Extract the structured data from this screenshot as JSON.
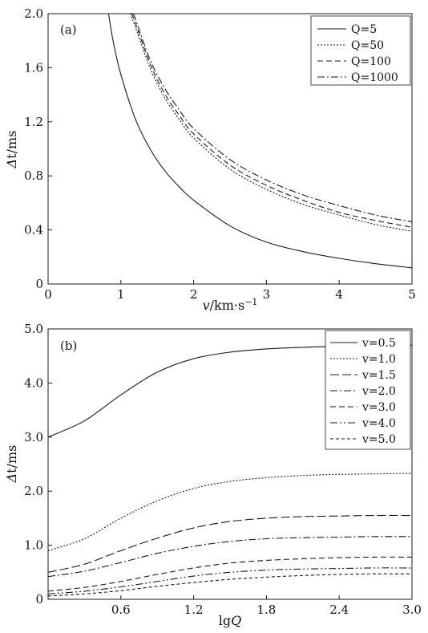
{
  "colors": {
    "ink": "#1a1a1a",
    "background": "#ffffff"
  },
  "chart_data": [
    {
      "panel": "(a)",
      "type": "line",
      "xlabel": "v/km·s⁻¹",
      "ylabel": "Δt/ms",
      "xlim": [
        0,
        5
      ],
      "ylim": [
        0,
        2.0
      ],
      "xticks": [
        "0",
        "1",
        "2",
        "3",
        "4",
        "5"
      ],
      "yticks": [
        "0",
        "0.4",
        "0.8",
        "1.2",
        "1.6",
        "2.0"
      ],
      "legend_position": "top-right",
      "series": [
        {
          "name": "Q=5",
          "dash": "solid",
          "x": [
            0.83,
            0.9,
            1.0,
            1.2,
            1.4,
            1.6,
            1.8,
            2.0,
            2.5,
            3.0,
            3.5,
            4.0,
            4.5,
            5.0
          ],
          "y": [
            2.0,
            1.78,
            1.55,
            1.22,
            1.0,
            0.84,
            0.72,
            0.62,
            0.43,
            0.31,
            0.24,
            0.19,
            0.15,
            0.12
          ]
        },
        {
          "name": "Q=50",
          "dash": "dot",
          "x": [
            1.13,
            1.2,
            1.4,
            1.6,
            1.8,
            2.0,
            2.5,
            3.0,
            3.5,
            4.0,
            4.5,
            5.0
          ],
          "y": [
            2.0,
            1.9,
            1.6,
            1.38,
            1.22,
            1.08,
            0.85,
            0.7,
            0.59,
            0.51,
            0.44,
            0.39
          ]
        },
        {
          "name": "Q=100",
          "dash": "dash",
          "x": [
            1.15,
            1.2,
            1.4,
            1.6,
            1.8,
            2.0,
            2.5,
            3.0,
            3.5,
            4.0,
            4.5,
            5.0
          ],
          "y": [
            2.0,
            1.93,
            1.63,
            1.41,
            1.25,
            1.11,
            0.88,
            0.73,
            0.62,
            0.53,
            0.47,
            0.42
          ]
        },
        {
          "name": "Q=1000",
          "dash": "dashdot",
          "x": [
            1.17,
            1.2,
            1.4,
            1.6,
            1.8,
            2.0,
            2.5,
            3.0,
            3.5,
            4.0,
            4.5,
            5.0
          ],
          "y": [
            2.0,
            1.96,
            1.66,
            1.45,
            1.29,
            1.15,
            0.92,
            0.77,
            0.66,
            0.58,
            0.51,
            0.46
          ]
        }
      ]
    },
    {
      "panel": "(b)",
      "type": "line",
      "xlabel": "lgQ",
      "ylabel": "Δt/ms",
      "xlim": [
        0,
        3.0
      ],
      "ylim": [
        0,
        5.0
      ],
      "xticks": [
        "0.6",
        "1.2",
        "1.8",
        "2.4",
        "3.0"
      ],
      "xtick_values": [
        0.6,
        1.2,
        1.8,
        2.4,
        3.0
      ],
      "yticks": [
        "0",
        "1.0",
        "2.0",
        "3.0",
        "4.0",
        "5.0"
      ],
      "legend_position": "top-right",
      "series": [
        {
          "name": "v=0.5",
          "dash": "solid",
          "x": [
            0,
            0.3,
            0.6,
            0.9,
            1.2,
            1.5,
            1.8,
            2.1,
            2.4,
            2.7,
            3.0
          ],
          "y": [
            3.0,
            3.3,
            3.78,
            4.2,
            4.45,
            4.57,
            4.63,
            4.66,
            4.68,
            4.69,
            4.7
          ]
        },
        {
          "name": "v=1.0",
          "dash": "dot",
          "x": [
            0,
            0.3,
            0.6,
            0.9,
            1.2,
            1.5,
            1.8,
            2.1,
            2.4,
            2.7,
            3.0
          ],
          "y": [
            0.9,
            1.12,
            1.5,
            1.82,
            2.05,
            2.18,
            2.25,
            2.29,
            2.31,
            2.32,
            2.33
          ]
        },
        {
          "name": "v=1.5",
          "dash": "longdash",
          "x": [
            0,
            0.3,
            0.6,
            0.9,
            1.2,
            1.5,
            1.8,
            2.1,
            2.4,
            2.7,
            3.0
          ],
          "y": [
            0.5,
            0.65,
            0.9,
            1.13,
            1.32,
            1.44,
            1.5,
            1.53,
            1.54,
            1.55,
            1.55
          ]
        },
        {
          "name": "v=2.0",
          "dash": "dashdot",
          "x": [
            0,
            0.3,
            0.6,
            0.9,
            1.2,
            1.5,
            1.8,
            2.1,
            2.4,
            2.7,
            3.0
          ],
          "y": [
            0.42,
            0.52,
            0.68,
            0.85,
            0.98,
            1.07,
            1.12,
            1.14,
            1.15,
            1.16,
            1.16
          ]
        },
        {
          "name": "v=3.0",
          "dash": "dash",
          "x": [
            0,
            0.3,
            0.6,
            0.9,
            1.2,
            1.5,
            1.8,
            2.1,
            2.4,
            2.7,
            3.0
          ],
          "y": [
            0.15,
            0.22,
            0.33,
            0.46,
            0.58,
            0.67,
            0.72,
            0.75,
            0.77,
            0.78,
            0.78
          ]
        },
        {
          "name": "v=4.0",
          "dash": "dashdotdot",
          "x": [
            0,
            0.3,
            0.6,
            0.9,
            1.2,
            1.5,
            1.8,
            2.1,
            2.4,
            2.7,
            3.0
          ],
          "y": [
            0.1,
            0.15,
            0.23,
            0.33,
            0.43,
            0.5,
            0.54,
            0.56,
            0.57,
            0.58,
            0.58
          ]
        },
        {
          "name": "v=5.0",
          "dash": "shortdash",
          "x": [
            0,
            0.3,
            0.6,
            0.9,
            1.2,
            1.5,
            1.8,
            2.1,
            2.4,
            2.7,
            3.0
          ],
          "y": [
            0.06,
            0.1,
            0.16,
            0.24,
            0.31,
            0.37,
            0.41,
            0.44,
            0.46,
            0.47,
            0.47
          ]
        }
      ]
    }
  ]
}
